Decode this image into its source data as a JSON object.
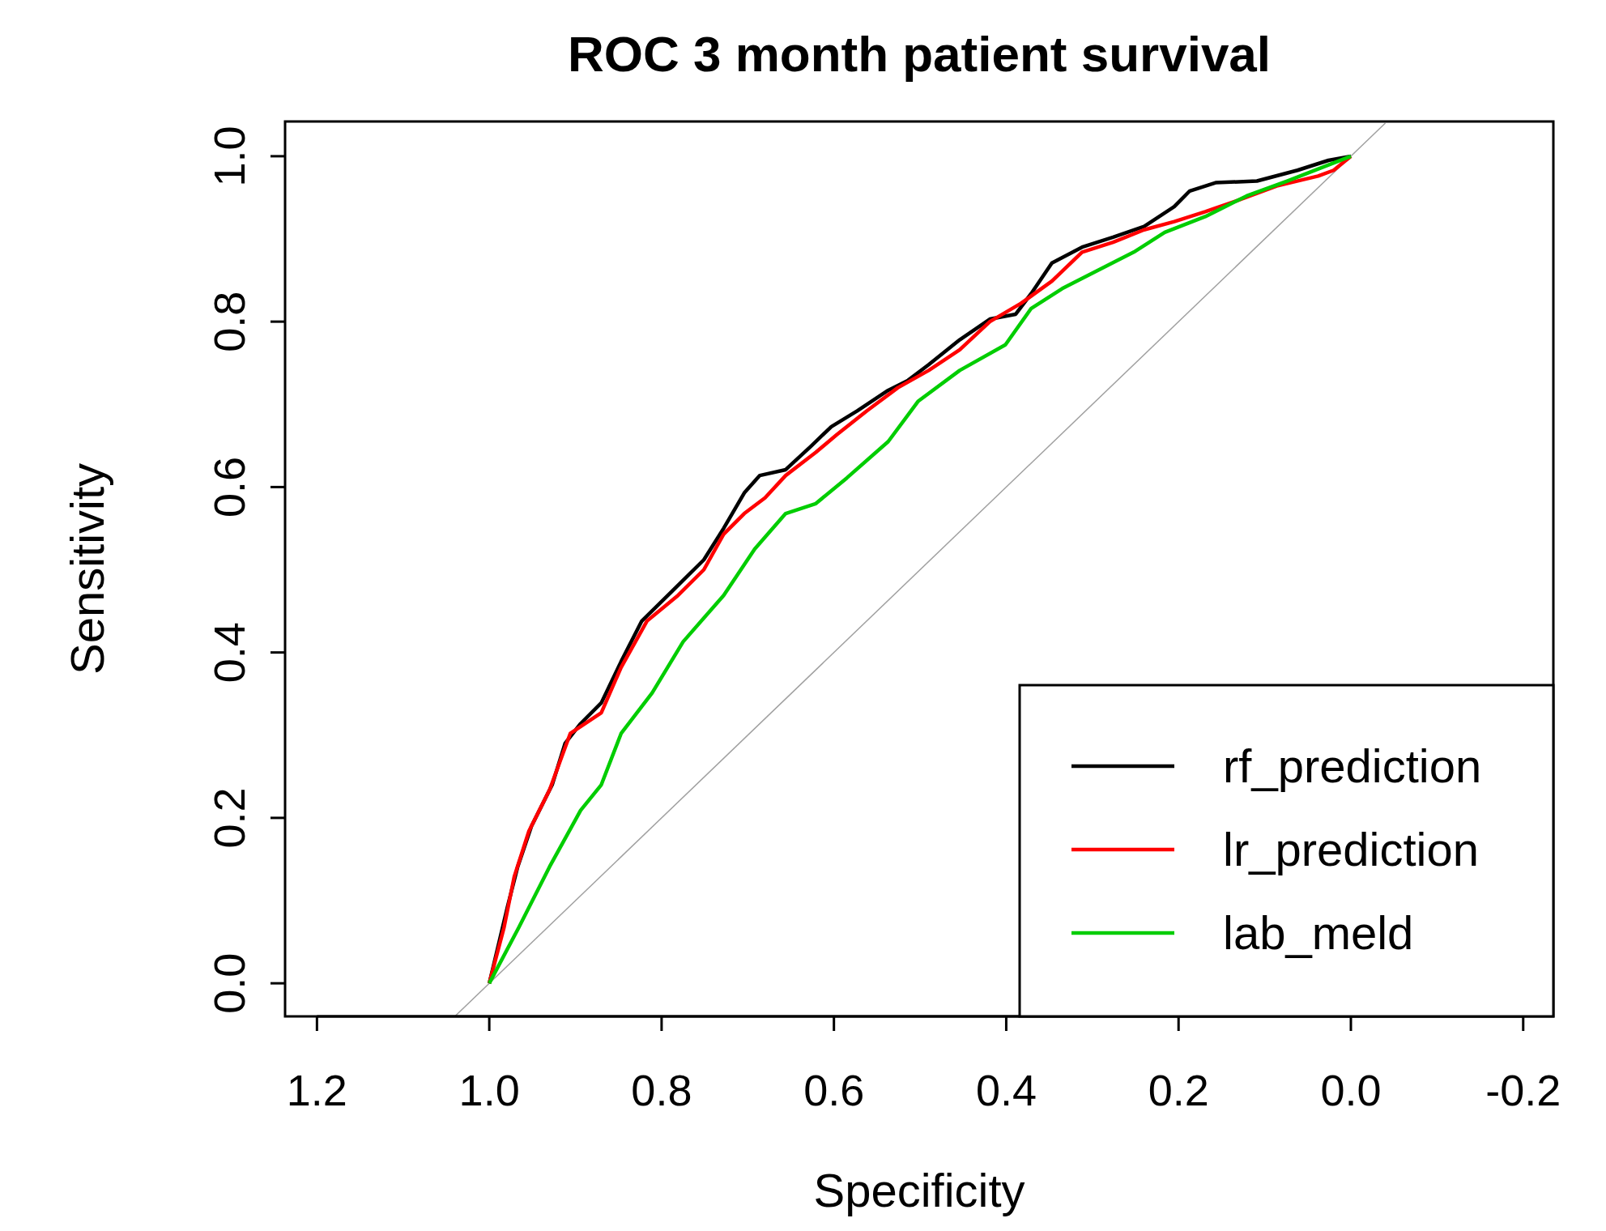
{
  "chart_data": {
    "type": "line",
    "title": "ROC 3 month patient survival",
    "xlabel": "Specificity",
    "ylabel": "Sensitivity",
    "xlim": [
      1.237,
      -0.235
    ],
    "ylim": [
      -0.04,
      1.042
    ],
    "xticks": [
      1.2,
      {
        "value": 1,
        "label": "1.0"
      },
      0.8,
      0.6,
      0.4,
      0.2,
      {
        "value": 0,
        "label": "0.0"
      },
      -0.2
    ],
    "yticks": [
      {
        "value": 0,
        "label": "0.0"
      },
      0.2,
      0.4,
      0.6,
      0.8,
      {
        "value": 1,
        "label": "1.0"
      }
    ],
    "grid": false,
    "legend": "bottom right",
    "line_style": "solid",
    "marker": "none",
    "series": [
      {
        "type": "line",
        "color": "#a0a0a0",
        "x": [
          1.04,
          -0.04
        ],
        "values": [
          -0.04,
          1.04
        ]
      },
      {
        "name": "rf_prediction",
        "color": "#000000",
        "x": [
          1,
          0.979,
          0.967,
          0.951,
          0.927,
          0.912,
          0.894,
          0.87,
          0.847,
          0.823,
          0.787,
          0.751,
          0.728,
          0.704,
          0.686,
          0.656,
          0.627,
          0.603,
          0.573,
          0.537,
          0.514,
          0.49,
          0.454,
          0.419,
          0.389,
          0.371,
          0.347,
          0.312,
          0.276,
          0.24,
          0.205,
          0.187,
          0.157,
          0.109,
          0.062,
          0.026,
          0
        ],
        "values": [
          0,
          0.092,
          0.141,
          0.19,
          0.24,
          0.29,
          0.314,
          0.339,
          0.389,
          0.438,
          0.475,
          0.512,
          0.55,
          0.593,
          0.614,
          0.621,
          0.649,
          0.673,
          0.692,
          0.717,
          0.729,
          0.748,
          0.778,
          0.803,
          0.809,
          0.834,
          0.871,
          0.89,
          0.902,
          0.915,
          0.939,
          0.958,
          0.968,
          0.97,
          0.983,
          0.995,
          1
        ]
      },
      {
        "name": "lr_prediction",
        "color": "#ff0000",
        "x": [
          1,
          0.983,
          0.971,
          0.954,
          0.93,
          0.906,
          0.87,
          0.847,
          0.817,
          0.781,
          0.751,
          0.728,
          0.704,
          0.68,
          0.656,
          0.621,
          0.597,
          0.562,
          0.526,
          0.49,
          0.454,
          0.419,
          0.383,
          0.347,
          0.312,
          0.276,
          0.24,
          0.205,
          0.169,
          0.133,
          0.086,
          0.038,
          0.02,
          0
        ],
        "values": [
          0,
          0.067,
          0.129,
          0.184,
          0.234,
          0.302,
          0.327,
          0.382,
          0.438,
          0.469,
          0.5,
          0.543,
          0.568,
          0.587,
          0.614,
          0.642,
          0.663,
          0.692,
          0.72,
          0.741,
          0.766,
          0.8,
          0.822,
          0.849,
          0.884,
          0.896,
          0.911,
          0.921,
          0.933,
          0.946,
          0.964,
          0.976,
          0.983,
          1
        ]
      },
      {
        "name": "lab_meld",
        "color": "#00cd00",
        "x": [
          1,
          0.966,
          0.93,
          0.894,
          0.87,
          0.847,
          0.811,
          0.775,
          0.728,
          0.692,
          0.656,
          0.621,
          0.585,
          0.537,
          0.502,
          0.454,
          0.401,
          0.371,
          0.335,
          0.288,
          0.252,
          0.216,
          0.169,
          0.121,
          0.074,
          0
        ],
        "values": [
          0,
          0.067,
          0.141,
          0.209,
          0.24,
          0.302,
          0.351,
          0.413,
          0.469,
          0.525,
          0.568,
          0.58,
          0.611,
          0.655,
          0.704,
          0.741,
          0.772,
          0.816,
          0.84,
          0.865,
          0.884,
          0.908,
          0.927,
          0.952,
          0.97,
          1
        ]
      }
    ]
  }
}
